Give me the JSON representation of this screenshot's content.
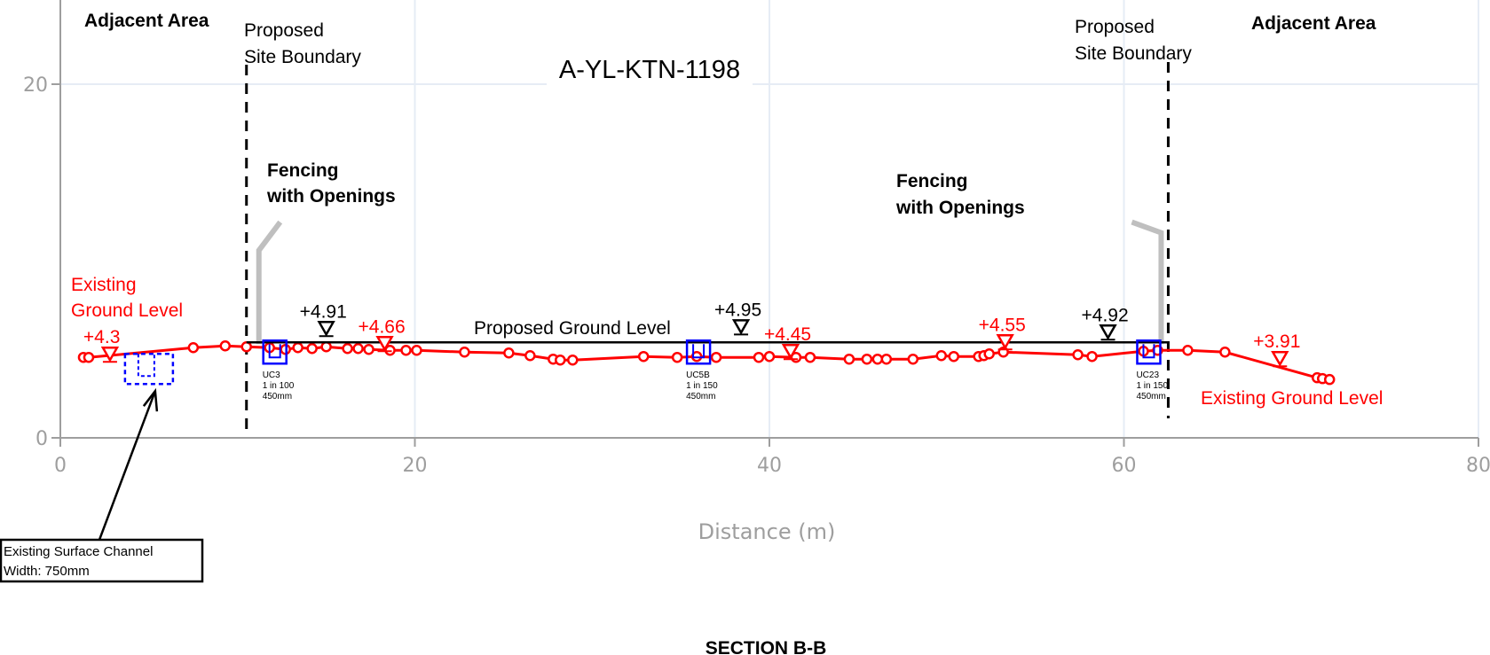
{
  "chart_data": {
    "type": "line",
    "title": "A-YL-KTN-1198",
    "footer": "SECTION B-B",
    "xlabel": "Distance (m)",
    "ylabel": "",
    "xlim": [
      0,
      80
    ],
    "ylim": [
      0,
      20
    ],
    "x_ticks": [
      "0",
      "20",
      "40",
      "60",
      "80"
    ],
    "y_ticks": [
      "0",
      "20"
    ],
    "grid": true,
    "series": [
      {
        "name": "Existing Ground Level",
        "color": "#ff0000",
        "x": [
          1.3,
          1.6,
          7.5,
          9.3,
          10.5,
          11.8,
          12.7,
          13.4,
          14.2,
          15.0,
          16.2,
          16.8,
          17.4,
          18.6,
          19.5,
          20.1,
          22.8,
          25.3,
          26.5,
          27.8,
          28.2,
          28.9,
          32.9,
          34.8,
          35.9,
          37.0,
          39.4,
          40.0,
          41.5,
          42.3,
          44.5,
          45.5,
          46.1,
          46.6,
          48.1,
          49.7,
          50.4,
          51.8,
          52.1,
          52.4,
          53.2,
          57.4,
          58.2,
          61.1,
          61.9,
          63.6,
          65.7,
          70.9,
          71.2,
          71.6
        ],
        "y": [
          4.55,
          4.55,
          5.1,
          5.2,
          5.15,
          5.1,
          5.0,
          5.1,
          5.05,
          5.15,
          5.05,
          5.05,
          5.0,
          4.95,
          4.95,
          4.95,
          4.85,
          4.8,
          4.65,
          4.45,
          4.4,
          4.4,
          4.6,
          4.55,
          4.6,
          4.55,
          4.55,
          4.6,
          4.55,
          4.55,
          4.45,
          4.45,
          4.45,
          4.45,
          4.45,
          4.65,
          4.6,
          4.6,
          4.65,
          4.75,
          4.85,
          4.7,
          4.6,
          4.9,
          4.95,
          4.95,
          4.85,
          3.4,
          3.35,
          3.3
        ]
      },
      {
        "name": "Proposed Ground Level",
        "color": "#000000",
        "x": [
          10.5,
          62.5
        ],
        "y": [
          5.4,
          5.4
        ]
      }
    ],
    "existing_level_markers": [
      {
        "label": "+4.3",
        "x": 2.8,
        "y": 4.75
      },
      {
        "label": "+4.66",
        "x": 18.3,
        "y": 5.35
      },
      {
        "label": "+4.45",
        "x": 41.2,
        "y": 4.9
      },
      {
        "label": "+4.55",
        "x": 53.3,
        "y": 5.45
      },
      {
        "label": "+3.91",
        "x": 68.8,
        "y": 4.5
      }
    ],
    "proposed_level_markers": [
      {
        "label": "+4.91",
        "x": 15.0,
        "y": 6.2
      },
      {
        "label": "+4.95",
        "x": 38.4,
        "y": 6.3
      },
      {
        "label": "+4.92",
        "x": 59.1,
        "y": 6.0
      }
    ],
    "boundaries": [
      {
        "label_line1": "Proposed",
        "label_line2": "Site Boundary",
        "x": 10.5
      },
      {
        "label_line1": "Proposed",
        "label_line2": "Site Boundary",
        "x": 62.5
      }
    ],
    "fencing": [
      {
        "label_line1": "Fencing",
        "label_line2": "with Openings",
        "x": 11.2
      },
      {
        "label_line1": "Fencing",
        "label_line2": "with Openings",
        "x": 62.1
      }
    ],
    "culverts": [
      {
        "id": "UC3",
        "gradient": "1 in 100",
        "size": "450mm",
        "x": 12.1,
        "y": 4.85
      },
      {
        "id": "UC5B",
        "gradient": "1 in 150",
        "size": "450mm",
        "x": 36.0,
        "y": 4.85
      },
      {
        "id": "UC23",
        "gradient": "1 in 150",
        "size": "450mm",
        "x": 61.4,
        "y": 4.85
      }
    ],
    "adjacent_area_label": "Adjacent Area",
    "existing_label_left": [
      "Existing",
      "Ground Level"
    ],
    "existing_label_right": "Existing Ground Level",
    "proposed_label": "Proposed Ground Level",
    "surface_channel": {
      "x": 5.0,
      "y": 3.9,
      "line1": "Existing Surface Channel",
      "line2": "Width: 750mm"
    },
    "colors": {
      "existing": "#ff0000",
      "proposed": "#000000",
      "culvert": "#0000ff",
      "grid": "#e6ecf5",
      "axis": "#9e9e9e",
      "fence": "#bfbfbf"
    }
  }
}
